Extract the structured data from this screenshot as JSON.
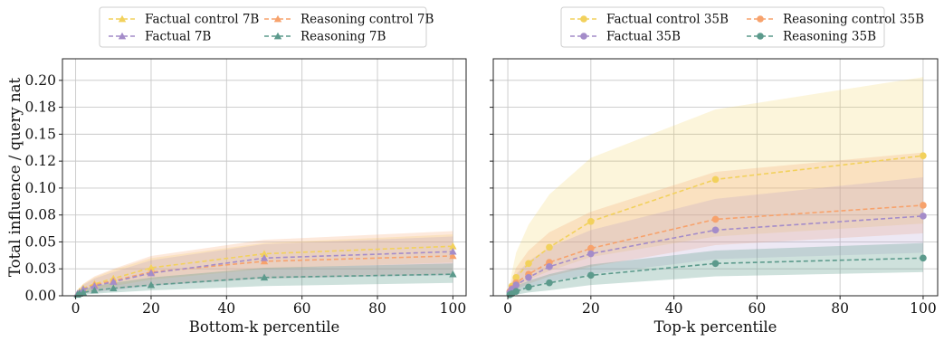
{
  "chart_data": [
    {
      "type": "line",
      "xlabel": "Bottom-k percentile",
      "ylabel": "Total influence / query nat",
      "xlim": [
        -3.5,
        103.5
      ],
      "ylim": [
        0,
        0.22
      ],
      "xticks": [
        0,
        20,
        40,
        60,
        80,
        100
      ],
      "xtick_labels": [
        "0",
        "20",
        "40",
        "60",
        "80",
        "100"
      ],
      "yticks": [
        0.0,
        0.025,
        0.05,
        0.075,
        0.1,
        0.125,
        0.15,
        0.175,
        0.2
      ],
      "ytick_labels": [
        "0.00",
        "0.03",
        "0.05",
        "0.08",
        "0.10",
        "0.12",
        "0.15",
        "0.18",
        "0.20"
      ],
      "grid": true,
      "legend_placement": "top, above plot, 2 columns",
      "marker": "triangle",
      "x": [
        0.5,
        1,
        2,
        5,
        10,
        20,
        50,
        100
      ],
      "series": [
        {
          "name": "Factual control 7B",
          "color": "#f2d15c",
          "values": [
            0.002,
            0.004,
            0.007,
            0.011,
            0.016,
            0.026,
            0.039,
            0.046
          ],
          "lower": [
            0.001,
            0.002,
            0.004,
            0.006,
            0.009,
            0.015,
            0.025,
            0.031
          ],
          "upper": [
            0.004,
            0.007,
            0.011,
            0.017,
            0.024,
            0.035,
            0.049,
            0.057
          ]
        },
        {
          "name": "Reasoning control 7B",
          "color": "#f7a26c",
          "values": [
            0.002,
            0.003,
            0.006,
            0.01,
            0.014,
            0.022,
            0.032,
            0.037
          ],
          "lower": [
            0.0,
            0.001,
            0.002,
            0.004,
            0.006,
            0.01,
            0.016,
            0.02
          ],
          "upper": [
            0.004,
            0.007,
            0.011,
            0.018,
            0.025,
            0.037,
            0.052,
            0.06
          ]
        },
        {
          "name": "Factual 7B",
          "color": "#a48cc9",
          "values": [
            0.002,
            0.003,
            0.006,
            0.009,
            0.013,
            0.021,
            0.035,
            0.041
          ],
          "lower": [
            0.0,
            0.001,
            0.002,
            0.003,
            0.005,
            0.009,
            0.016,
            0.019
          ],
          "upper": [
            0.004,
            0.006,
            0.01,
            0.016,
            0.022,
            0.033,
            0.048,
            0.055
          ]
        },
        {
          "name": "Reasoning 7B",
          "color": "#5c9a8c",
          "values": [
            0.001,
            0.002,
            0.003,
            0.005,
            0.007,
            0.01,
            0.017,
            0.02
          ],
          "lower": [
            0.0,
            0.0,
            0.001,
            0.002,
            0.003,
            0.005,
            0.009,
            0.012
          ],
          "upper": [
            0.002,
            0.004,
            0.006,
            0.009,
            0.012,
            0.017,
            0.026,
            0.03
          ]
        }
      ]
    },
    {
      "type": "line",
      "xlabel": "Top-k percentile",
      "ylabel": "",
      "xlim": [
        -3.5,
        103.5
      ],
      "ylim": [
        0,
        0.22
      ],
      "xticks": [
        0,
        20,
        40,
        60,
        80,
        100
      ],
      "xtick_labels": [
        "0",
        "20",
        "40",
        "60",
        "80",
        "100"
      ],
      "grid": true,
      "legend_placement": "top, above plot, 2 columns",
      "marker": "circle",
      "x": [
        0.5,
        1,
        2,
        5,
        10,
        20,
        50,
        100
      ],
      "series": [
        {
          "name": "Factual control 35B",
          "color": "#f2d15c",
          "values": [
            0.004,
            0.009,
            0.017,
            0.03,
            0.045,
            0.069,
            0.108,
            0.13
          ],
          "lower": [
            0.001,
            0.004,
            0.008,
            0.015,
            0.023,
            0.036,
            0.055,
            0.067
          ],
          "upper": [
            0.01,
            0.022,
            0.04,
            0.066,
            0.094,
            0.128,
            0.173,
            0.203
          ]
        },
        {
          "name": "Reasoning control 35B",
          "color": "#f7a26c",
          "values": [
            0.004,
            0.007,
            0.012,
            0.02,
            0.031,
            0.044,
            0.071,
            0.084
          ],
          "lower": [
            0.001,
            0.003,
            0.006,
            0.011,
            0.018,
            0.027,
            0.047,
            0.058
          ],
          "upper": [
            0.008,
            0.015,
            0.026,
            0.042,
            0.059,
            0.078,
            0.115,
            0.133
          ]
        },
        {
          "name": "Factual 35B",
          "color": "#a48cc9",
          "values": [
            0.003,
            0.006,
            0.01,
            0.017,
            0.027,
            0.039,
            0.061,
            0.074
          ],
          "lower": [
            0.0,
            0.002,
            0.004,
            0.008,
            0.013,
            0.02,
            0.034,
            0.04
          ],
          "upper": [
            0.006,
            0.012,
            0.02,
            0.032,
            0.045,
            0.061,
            0.09,
            0.11
          ]
        },
        {
          "name": "Reasoning 35B",
          "color": "#5c9a8c",
          "values": [
            0.001,
            0.002,
            0.004,
            0.008,
            0.012,
            0.019,
            0.03,
            0.035
          ],
          "lower": [
            0.0,
            0.0,
            0.001,
            0.003,
            0.005,
            0.01,
            0.018,
            0.022
          ],
          "upper": [
            0.003,
            0.006,
            0.009,
            0.014,
            0.02,
            0.029,
            0.042,
            0.049
          ]
        }
      ]
    }
  ]
}
